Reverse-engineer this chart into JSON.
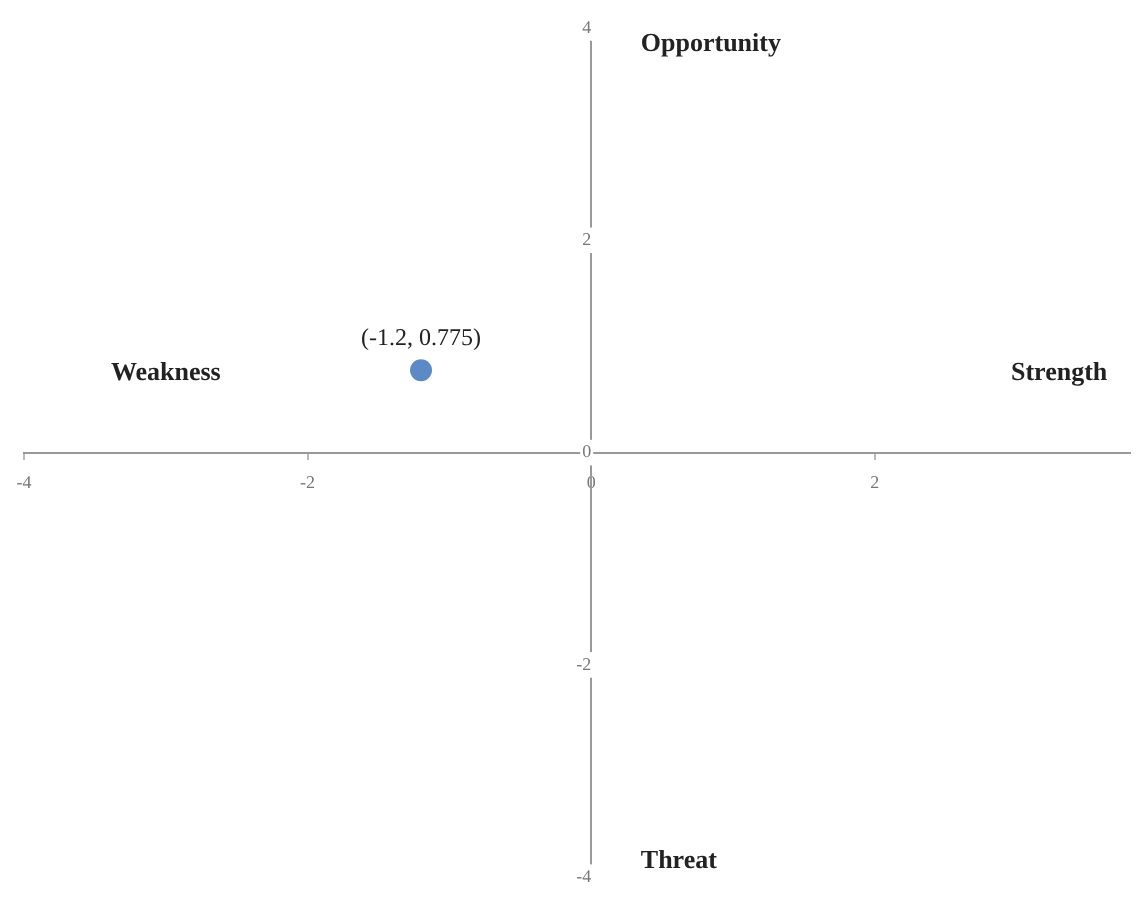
{
  "chart_data": {
    "type": "scatter",
    "annotations": [
      "Opportunity",
      "Weakness",
      "Strength",
      "Threat"
    ],
    "series": [
      {
        "color": "#5b8ac6",
        "x": [
          -1.2
        ],
        "values": [
          0.775
        ],
        "value_labels": [
          "(-1.2, 0.775)"
        ]
      }
    ],
    "xlim": [
      -4,
      3.8
    ],
    "xticks": [
      -4,
      -2,
      0,
      2
    ],
    "ylim": [
      -4,
      4
    ],
    "yticks": [
      -4,
      -2,
      0,
      2,
      4
    ],
    "grid": false,
    "legend": false,
    "marker": "circle"
  }
}
